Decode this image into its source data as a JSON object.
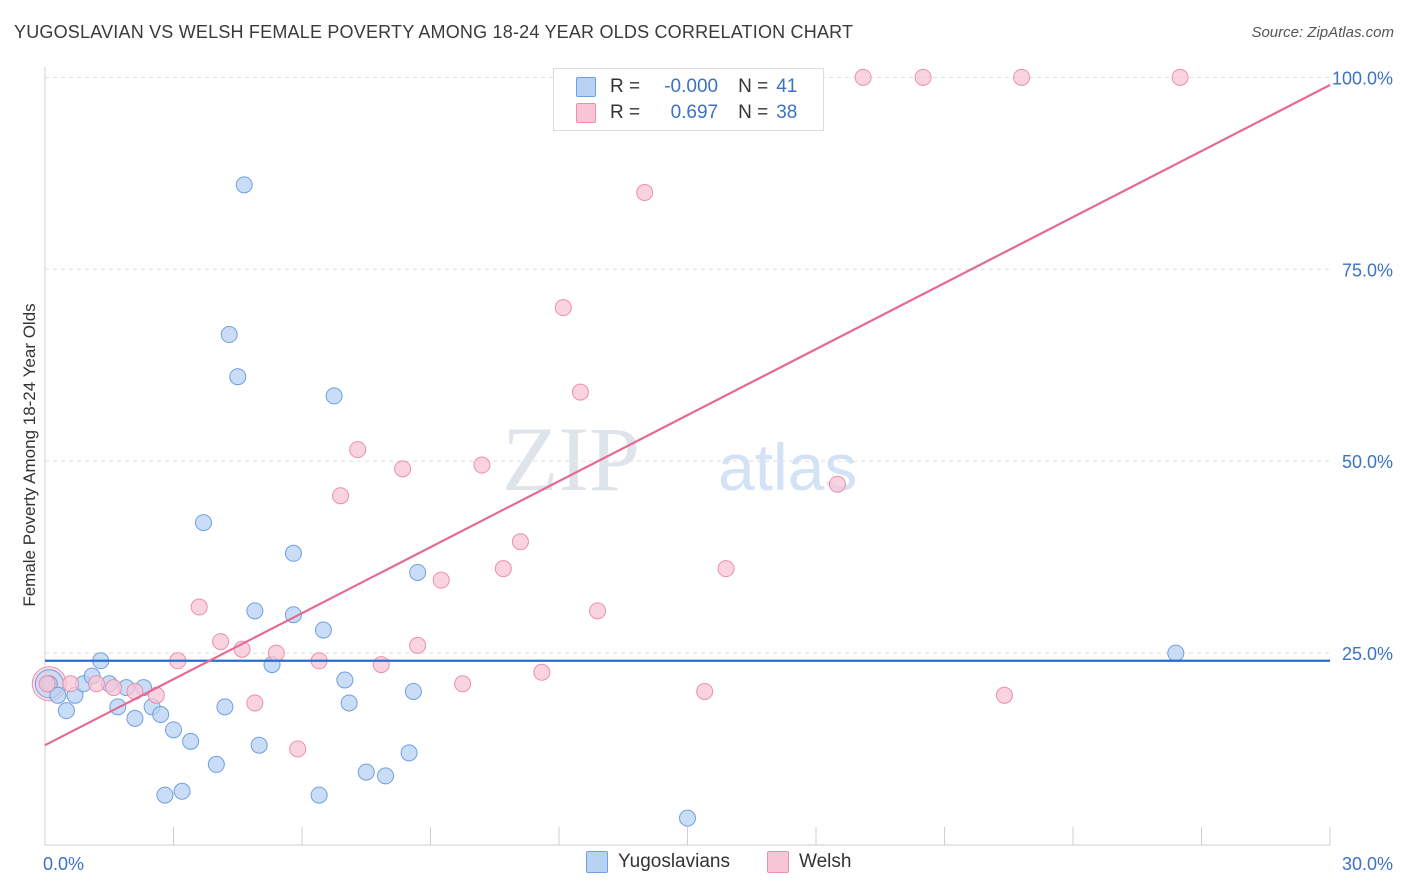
{
  "title": "YUGOSLAVIAN VS WELSH FEMALE POVERTY AMONG 18-24 YEAR OLDS CORRELATION CHART",
  "source": "Source: ZipAtlas.com",
  "watermark": {
    "zip": "ZIP",
    "atlas": "atlas"
  },
  "legend": {
    "rows": [
      {
        "r_label": "R =",
        "r_value": "-0.000",
        "n_label": "N =",
        "n_value": "41"
      },
      {
        "r_label": "R =",
        "r_value": "0.697",
        "n_label": "N =",
        "n_value": "38"
      }
    ]
  },
  "bottom_legend": [
    "Yugoslavians",
    "Welsh"
  ],
  "colors": {
    "yugoslavian_fill": "#b8d2f3",
    "yugoslavian_stroke": "#6f9fe0",
    "yugoslavian_line": "#2a6ccf",
    "welsh_fill": "#f7c5d5",
    "welsh_stroke": "#ec8fab",
    "welsh_line": "#e46a94",
    "tick_label": "#3b72c4",
    "grid": "#dddddd"
  },
  "chart_data": {
    "type": "scatter",
    "title": "YUGOSLAVIAN VS WELSH FEMALE POVERTY AMONG 18-24 YEAR OLDS CORRELATION CHART",
    "xlabel": "",
    "ylabel": "Female Poverty Among 18-24 Year Olds",
    "xlim": [
      0,
      30
    ],
    "ylim": [
      0,
      102
    ],
    "x_tick_labels": [
      "0.0%",
      "30.0%"
    ],
    "y_ticks": [
      25,
      50,
      75,
      100
    ],
    "y_tick_labels": [
      "25.0%",
      "50.0%",
      "75.0%",
      "100.0%"
    ],
    "grid": true,
    "legend_position": "top-center",
    "series": [
      {
        "name": "Yugoslavians",
        "points": [
          [
            0.1,
            21.0
          ],
          [
            0.3,
            19.5
          ],
          [
            0.5,
            17.5
          ],
          [
            0.7,
            19.5
          ],
          [
            0.9,
            21.0
          ],
          [
            1.1,
            22.0
          ],
          [
            1.3,
            24.0
          ],
          [
            1.5,
            21.0
          ],
          [
            1.7,
            18.0
          ],
          [
            1.9,
            20.5
          ],
          [
            2.1,
            16.5
          ],
          [
            2.3,
            20.5
          ],
          [
            2.5,
            18.0
          ],
          [
            2.7,
            17.0
          ],
          [
            2.8,
            6.5
          ],
          [
            3.0,
            15.0
          ],
          [
            3.2,
            7.0
          ],
          [
            3.4,
            13.5
          ],
          [
            3.7,
            42.0
          ],
          [
            4.0,
            10.5
          ],
          [
            4.2,
            18.0
          ],
          [
            4.3,
            66.5
          ],
          [
            4.5,
            61.0
          ],
          [
            4.65,
            86.0
          ],
          [
            4.9,
            30.5
          ],
          [
            5.0,
            13.0
          ],
          [
            5.3,
            23.5
          ],
          [
            5.8,
            30.0
          ],
          [
            5.8,
            38.0
          ],
          [
            6.4,
            6.5
          ],
          [
            6.5,
            28.0
          ],
          [
            6.75,
            58.5
          ],
          [
            7.0,
            21.5
          ],
          [
            7.1,
            18.5
          ],
          [
            7.5,
            9.5
          ],
          [
            7.95,
            9.0
          ],
          [
            8.5,
            12.0
          ],
          [
            8.6,
            20.0
          ],
          [
            8.7,
            35.5
          ],
          [
            15.0,
            3.5
          ],
          [
            26.4,
            25.0
          ]
        ],
        "trend": {
          "x": [
            0,
            30
          ],
          "y": [
            24.0,
            24.0
          ]
        }
      },
      {
        "name": "Welsh",
        "points": [
          [
            0.05,
            21.0
          ],
          [
            0.6,
            21.0
          ],
          [
            1.2,
            21.0
          ],
          [
            1.6,
            20.5
          ],
          [
            2.1,
            20.0
          ],
          [
            2.6,
            19.5
          ],
          [
            3.1,
            24.0
          ],
          [
            3.6,
            31.0
          ],
          [
            4.1,
            26.5
          ],
          [
            4.6,
            25.5
          ],
          [
            4.9,
            18.5
          ],
          [
            5.4,
            25.0
          ],
          [
            5.9,
            12.5
          ],
          [
            6.4,
            24.0
          ],
          [
            6.9,
            45.5
          ],
          [
            7.3,
            51.5
          ],
          [
            7.85,
            23.5
          ],
          [
            8.35,
            49.0
          ],
          [
            8.7,
            26.0
          ],
          [
            9.25,
            34.5
          ],
          [
            9.75,
            21.0
          ],
          [
            10.2,
            49.5
          ],
          [
            10.7,
            36.0
          ],
          [
            11.1,
            39.5
          ],
          [
            11.6,
            22.5
          ],
          [
            12.1,
            70.0
          ],
          [
            12.5,
            59.0
          ],
          [
            12.9,
            30.5
          ],
          [
            14.0,
            85.0
          ],
          [
            15.3,
            100.0
          ],
          [
            15.4,
            20.0
          ],
          [
            15.9,
            36.0
          ],
          [
            18.5,
            47.0
          ],
          [
            19.1,
            100.0
          ],
          [
            20.5,
            100.0
          ],
          [
            22.4,
            19.5
          ],
          [
            22.8,
            100.0
          ],
          [
            26.5,
            100.0
          ]
        ],
        "trend": {
          "x": [
            0,
            30
          ],
          "y": [
            13.0,
            99.0
          ]
        }
      }
    ]
  }
}
